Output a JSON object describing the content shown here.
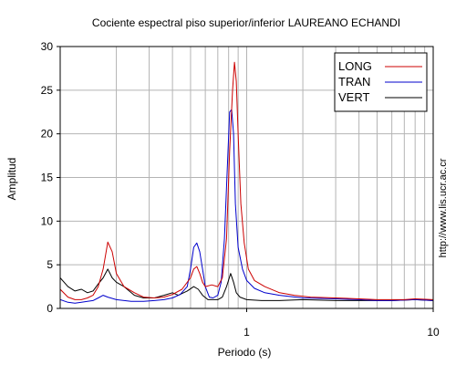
{
  "chart_data": {
    "type": "line",
    "title": "Cociente espectral piso superior/inferior LAUREANO ECHANDI",
    "xlabel": "Periodo (s)",
    "ylabel": "Amplitud",
    "x_scale": "log",
    "xlim": [
      0.1,
      10
    ],
    "ylim": [
      0,
      30
    ],
    "x_tick_labels": [
      {
        "value": 1,
        "label": "1"
      },
      {
        "value": 10,
        "label": "10"
      }
    ],
    "y_ticks": [
      0,
      5,
      10,
      15,
      20,
      25,
      30
    ],
    "grid": true,
    "legend_position": "top-right",
    "watermark": "http://www.lis.ucr.ac.cr",
    "series": [
      {
        "name": "LONG",
        "color": "#cc0000",
        "points": [
          [
            0.1,
            2.2
          ],
          [
            0.11,
            1.3
          ],
          [
            0.12,
            1.0
          ],
          [
            0.13,
            1.0
          ],
          [
            0.14,
            1.2
          ],
          [
            0.15,
            1.5
          ],
          [
            0.16,
            2.5
          ],
          [
            0.17,
            4.5
          ],
          [
            0.18,
            7.6
          ],
          [
            0.19,
            6.5
          ],
          [
            0.2,
            4.0
          ],
          [
            0.22,
            2.5
          ],
          [
            0.25,
            1.8
          ],
          [
            0.28,
            1.3
          ],
          [
            0.32,
            1.2
          ],
          [
            0.36,
            1.3
          ],
          [
            0.4,
            1.6
          ],
          [
            0.45,
            2.2
          ],
          [
            0.5,
            3.5
          ],
          [
            0.52,
            4.5
          ],
          [
            0.54,
            4.8
          ],
          [
            0.56,
            4.0
          ],
          [
            0.58,
            3.0
          ],
          [
            0.6,
            2.5
          ],
          [
            0.65,
            2.7
          ],
          [
            0.7,
            2.5
          ],
          [
            0.74,
            3.5
          ],
          [
            0.78,
            8.0
          ],
          [
            0.81,
            18.0
          ],
          [
            0.84,
            25.0
          ],
          [
            0.86,
            28.2
          ],
          [
            0.88,
            26.0
          ],
          [
            0.9,
            20.0
          ],
          [
            0.93,
            12.0
          ],
          [
            0.97,
            7.5
          ],
          [
            1.02,
            4.5
          ],
          [
            1.1,
            3.2
          ],
          [
            1.25,
            2.5
          ],
          [
            1.5,
            1.8
          ],
          [
            1.8,
            1.5
          ],
          [
            2.2,
            1.3
          ],
          [
            3.0,
            1.2
          ],
          [
            4.0,
            1.1
          ],
          [
            5.0,
            1.0
          ],
          [
            6.0,
            1.0
          ],
          [
            7.0,
            1.0
          ],
          [
            8.0,
            1.1
          ],
          [
            10.0,
            1.0
          ]
        ]
      },
      {
        "name": "TRAN",
        "color": "#0000cc",
        "points": [
          [
            0.1,
            1.0
          ],
          [
            0.11,
            0.7
          ],
          [
            0.12,
            0.6
          ],
          [
            0.13,
            0.7
          ],
          [
            0.14,
            0.8
          ],
          [
            0.15,
            0.9
          ],
          [
            0.16,
            1.2
          ],
          [
            0.17,
            1.5
          ],
          [
            0.18,
            1.3
          ],
          [
            0.2,
            1.0
          ],
          [
            0.24,
            0.8
          ],
          [
            0.28,
            0.8
          ],
          [
            0.32,
            0.9
          ],
          [
            0.36,
            1.0
          ],
          [
            0.4,
            1.2
          ],
          [
            0.44,
            1.6
          ],
          [
            0.48,
            2.5
          ],
          [
            0.5,
            4.5
          ],
          [
            0.52,
            7.0
          ],
          [
            0.54,
            7.5
          ],
          [
            0.56,
            6.5
          ],
          [
            0.58,
            4.5
          ],
          [
            0.6,
            2.5
          ],
          [
            0.63,
            1.3
          ],
          [
            0.66,
            1.2
          ],
          [
            0.7,
            1.5
          ],
          [
            0.73,
            3.0
          ],
          [
            0.76,
            8.0
          ],
          [
            0.79,
            17.0
          ],
          [
            0.81,
            22.5
          ],
          [
            0.83,
            22.8
          ],
          [
            0.85,
            20.0
          ],
          [
            0.87,
            12.0
          ],
          [
            0.9,
            7.0
          ],
          [
            0.95,
            4.5
          ],
          [
            1.0,
            3.2
          ],
          [
            1.1,
            2.3
          ],
          [
            1.25,
            1.8
          ],
          [
            1.5,
            1.5
          ],
          [
            2.0,
            1.2
          ],
          [
            3.0,
            1.1
          ],
          [
            4.0,
            1.0
          ],
          [
            5.0,
            0.9
          ],
          [
            6.0,
            0.9
          ],
          [
            8.0,
            1.0
          ],
          [
            10.0,
            0.9
          ]
        ]
      },
      {
        "name": "VERT",
        "color": "#000000",
        "points": [
          [
            0.1,
            3.5
          ],
          [
            0.11,
            2.5
          ],
          [
            0.12,
            2.0
          ],
          [
            0.13,
            2.2
          ],
          [
            0.14,
            1.8
          ],
          [
            0.15,
            2.0
          ],
          [
            0.16,
            2.8
          ],
          [
            0.17,
            3.5
          ],
          [
            0.18,
            4.5
          ],
          [
            0.19,
            3.5
          ],
          [
            0.2,
            3.0
          ],
          [
            0.22,
            2.5
          ],
          [
            0.25,
            1.5
          ],
          [
            0.28,
            1.2
          ],
          [
            0.32,
            1.2
          ],
          [
            0.36,
            1.5
          ],
          [
            0.4,
            1.8
          ],
          [
            0.43,
            1.5
          ],
          [
            0.48,
            2.0
          ],
          [
            0.52,
            2.5
          ],
          [
            0.55,
            2.2
          ],
          [
            0.58,
            1.5
          ],
          [
            0.62,
            1.0
          ],
          [
            0.66,
            1.0
          ],
          [
            0.7,
            1.0
          ],
          [
            0.74,
            1.3
          ],
          [
            0.78,
            2.5
          ],
          [
            0.82,
            4.0
          ],
          [
            0.85,
            3.0
          ],
          [
            0.88,
            1.8
          ],
          [
            0.92,
            1.3
          ],
          [
            1.0,
            1.0
          ],
          [
            1.2,
            0.9
          ],
          [
            1.5,
            0.9
          ],
          [
            2.0,
            1.0
          ],
          [
            3.0,
            0.9
          ],
          [
            4.0,
            0.9
          ],
          [
            6.0,
            0.9
          ],
          [
            8.0,
            1.0
          ],
          [
            10.0,
            0.9
          ]
        ]
      }
    ]
  }
}
